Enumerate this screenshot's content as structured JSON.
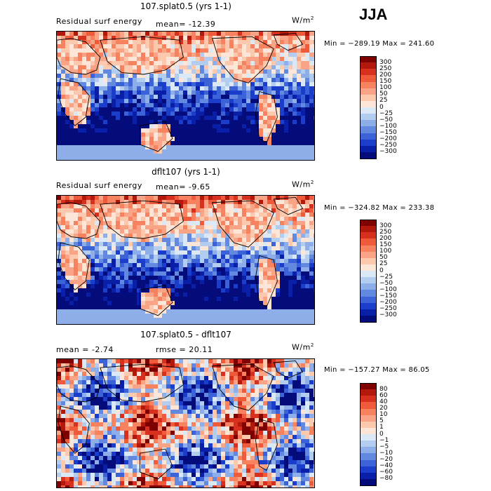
{
  "season": "JJA",
  "panels": [
    {
      "title": "107.splat0.5 (yrs 1-1)",
      "left_label": "Residual surf energy",
      "stat_label": "mean= -12.39",
      "units": "W/m",
      "units_exp": "2",
      "minmax": "Min = −289.19 Max = 241.60",
      "levels": [
        "300",
        "250",
        "200",
        "150",
        "100",
        "50",
        "25",
        "0",
        "−25",
        "−50",
        "−100",
        "−150",
        "−200",
        "−250",
        "−300"
      ],
      "colors": [
        "#7f0000",
        "#b2180c",
        "#d7301f",
        "#ef5a3a",
        "#f6825f",
        "#f9a486",
        "#fcc8ae",
        "#fde6d8",
        "#dbe9f7",
        "#b2cdf0",
        "#8daee8",
        "#6388e0",
        "#3c62d8",
        "#1a3ecb",
        "#0a1fa8",
        "#030c7a"
      ],
      "bias": 0.0
    },
    {
      "title": "dflt107 (yrs 1-1)",
      "left_label": "Residual surf energy",
      "stat_label": "mean=  -9.65",
      "units": "W/m",
      "units_exp": "2",
      "minmax": "Min = −324.82 Max = 233.38",
      "levels": [
        "300",
        "250",
        "200",
        "150",
        "100",
        "50",
        "25",
        "0",
        "−25",
        "−50",
        "−100",
        "−150",
        "−200",
        "−250",
        "−300"
      ],
      "colors": [
        "#7f0000",
        "#b2180c",
        "#d7301f",
        "#ef5a3a",
        "#f6825f",
        "#f9a486",
        "#fcc8ae",
        "#fde6d8",
        "#dbe9f7",
        "#b2cdf0",
        "#8daee8",
        "#6388e0",
        "#3c62d8",
        "#1a3ecb",
        "#0a1fa8",
        "#030c7a"
      ],
      "bias": 0.05
    },
    {
      "title": "107.splat0.5 - dflt107",
      "left_label": "mean =   -2.74",
      "stat_label": "rmse =  20.11",
      "units": "W/m",
      "units_exp": "2",
      "minmax": "Min = −157.27 Max =  86.05",
      "levels": [
        "80",
        "60",
        "40",
        "20",
        "10",
        "5",
        "1",
        "0",
        "−1",
        "−5",
        "−10",
        "−20",
        "−40",
        "−60",
        "−80"
      ],
      "colors": [
        "#7f0000",
        "#b2180c",
        "#d7301f",
        "#ef5a3a",
        "#f6825f",
        "#f9a486",
        "#fcc8ae",
        "#fde6d8",
        "#dbe9f7",
        "#b2cdf0",
        "#8daee8",
        "#6388e0",
        "#3c62d8",
        "#1a3ecb",
        "#0a1fa8",
        "#030c7a"
      ],
      "bias": 0.0
    }
  ]
}
